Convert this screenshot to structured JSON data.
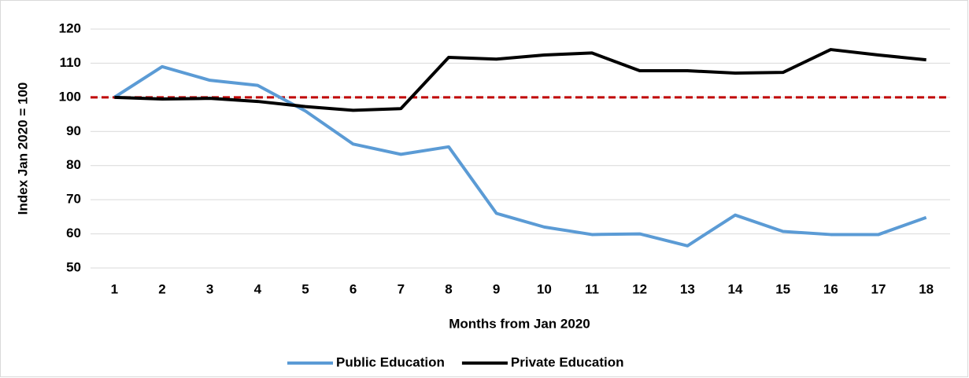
{
  "chart_data": {
    "type": "line",
    "y_axis_title": "Index Jan 2020 = 100",
    "x_axis_title": "Months from Jan 2020",
    "categories": [
      "1",
      "2",
      "3",
      "4",
      "5",
      "6",
      "7",
      "8",
      "9",
      "10",
      "11",
      "12",
      "13",
      "14",
      "15",
      "16",
      "17",
      "18"
    ],
    "series": [
      {
        "name": "Public Education",
        "color": "#5b9bd5",
        "values": [
          100,
          109,
          105,
          103.5,
          96,
          86.3,
          83.3,
          85.5,
          66,
          62,
          59.8,
          60,
          56.5,
          65.5,
          60.7,
          59.8,
          59.8,
          64.8
        ]
      },
      {
        "name": "Private Education",
        "color": "#000000",
        "values": [
          100,
          99.5,
          99.7,
          98.8,
          97.3,
          96.2,
          96.7,
          111.7,
          111.2,
          112.4,
          113,
          107.8,
          107.8,
          107.1,
          107.3,
          114,
          112.4,
          111
        ]
      }
    ],
    "reference_line": {
      "value": 100,
      "color": "#c00000"
    },
    "ylim": [
      50,
      120
    ],
    "yticks": [
      50,
      60,
      70,
      80,
      90,
      100,
      110,
      120
    ],
    "grid": true,
    "legend": "bottom"
  }
}
